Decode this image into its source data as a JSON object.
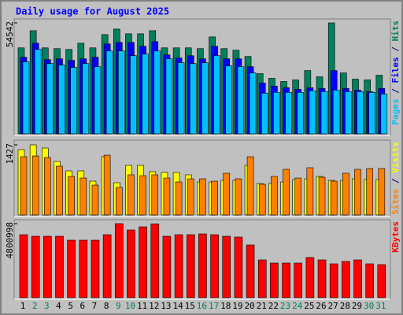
{
  "chart_data": [
    {
      "type": "bar",
      "title": "Daily usage for August 2025",
      "legend_separator": " / ",
      "ylim": [
        0,
        54542
      ],
      "yticks": [
        54542
      ],
      "series": [
        {
          "name": "Hits",
          "color": "#00805c",
          "values": [
            42251,
            50701,
            42251,
            41867,
            41483,
            44556,
            42251,
            48781,
            51469,
            49165,
            49165,
            50701,
            42251,
            42251,
            42251,
            41867,
            47628,
            41867,
            41099,
            38026,
            29576,
            27271,
            25735,
            26503,
            31112,
            28039,
            54542,
            29960,
            26887,
            26503,
            28808
          ]
        },
        {
          "name": "Files",
          "color": "#0000ff",
          "values": [
            37640,
            44556,
            36490,
            36874,
            36105,
            36874,
            37640,
            44172,
            44940,
            44940,
            43019,
            45324,
            38794,
            37258,
            38410,
            36874,
            43019,
            36874,
            36874,
            33033,
            24967,
            23430,
            22662,
            21894,
            22662,
            22278,
            31112,
            22278,
            21510,
            20741,
            22278
          ]
        },
        {
          "name": "Pages",
          "color": "#00c0ff",
          "values": [
            35337,
            41483,
            34569,
            33801,
            32649,
            34569,
            33033,
            40715,
            40715,
            38410,
            39178,
            40715,
            36874,
            34953,
            34569,
            34953,
            38410,
            33417,
            33033,
            29960,
            19973,
            20357,
            20357,
            20357,
            21126,
            20741,
            21510,
            20741,
            20741,
            20357,
            19589
          ]
        }
      ]
    },
    {
      "type": "bar",
      "legend_separator": " / ",
      "ylim": [
        0,
        1427
      ],
      "yticks": [
        1427
      ],
      "series": [
        {
          "name": "Visits",
          "color": "#ffff00",
          "values": [
            1330,
            1427,
            1363,
            1090,
            898,
            898,
            689,
            1186,
            657,
            1010,
            1010,
            882,
            866,
            866,
            818,
            673,
            673,
            705,
            705,
            1010,
            641,
            641,
            673,
            721,
            737,
            785,
            705,
            705,
            737,
            721,
            721
          ]
        },
        {
          "name": "Sites",
          "color": "#ff8000",
          "values": [
            1186,
            1202,
            1170,
            994,
            785,
            753,
            609,
            1218,
            561,
            818,
            801,
            818,
            753,
            673,
            737,
            737,
            689,
            850,
            737,
            1186,
            625,
            785,
            930,
            753,
            962,
            769,
            689,
            850,
            930,
            946,
            946
          ]
        }
      ]
    },
    {
      "type": "bar",
      "ylim": [
        0,
        4800998
      ],
      "yticks": [
        4800998
      ],
      "categories": [
        "1",
        "2",
        "3",
        "4",
        "5",
        "6",
        "7",
        "8",
        "9",
        "10",
        "11",
        "12",
        "13",
        "14",
        "15",
        "16",
        "17",
        "18",
        "19",
        "20",
        "21",
        "22",
        "23",
        "24",
        "25",
        "26",
        "27",
        "28",
        "29",
        "30",
        "31"
      ],
      "highlight_categories": [
        "2",
        "3",
        "9",
        "10",
        "16",
        "17",
        "23",
        "24",
        "30",
        "31"
      ],
      "highlight_color": "#00805c",
      "label_color": "#000000",
      "series": [
        {
          "name": "KBytes",
          "color": "#ff0000",
          "values": [
            4085920,
            3983772,
            3983772,
            3983772,
            3728402,
            3728402,
            3728402,
            4085920,
            4800998,
            4392364,
            4596660,
            4790000,
            3983772,
            4085920,
            4085920,
            4137000,
            4085920,
            3983772,
            3932698,
            3421958,
            2451552,
            2247256,
            2247256,
            2247256,
            2604774,
            2451552,
            2196182,
            2349404,
            2451552,
            2196182,
            2145108
          ]
        }
      ]
    }
  ]
}
